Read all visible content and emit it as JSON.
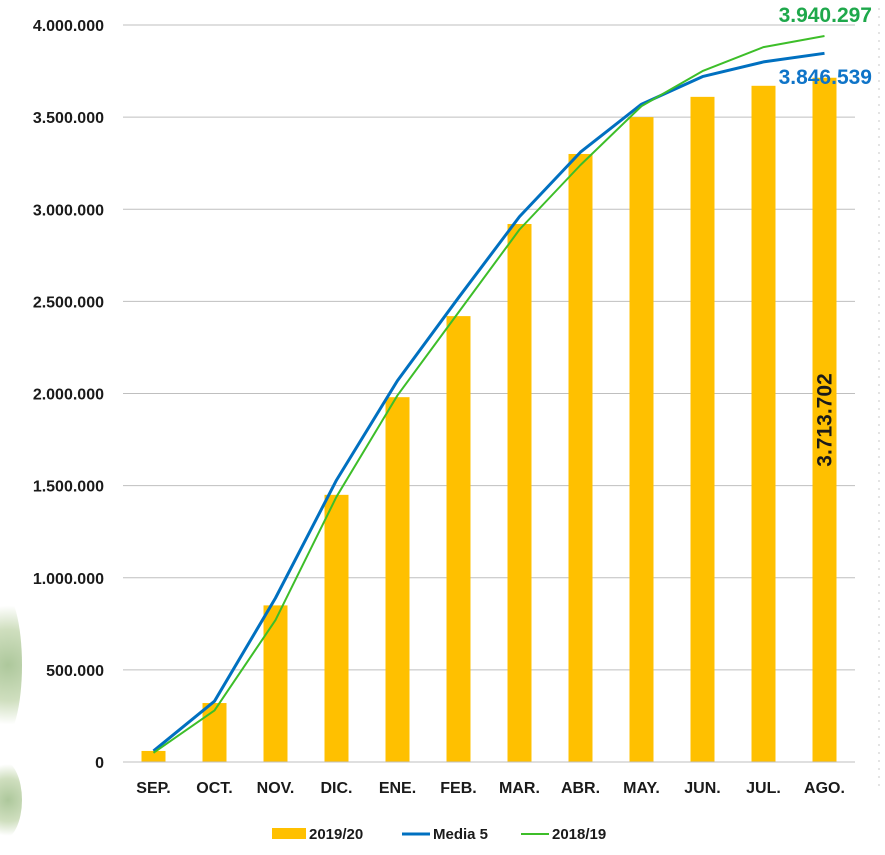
{
  "chart_data": {
    "type": "bar",
    "categories": [
      "SEP.",
      "OCT.",
      "NOV.",
      "DIC.",
      "ENE.",
      "FEB.",
      "MAR.",
      "ABR.",
      "MAY.",
      "JUN.",
      "JUL.",
      "AGO."
    ],
    "ylim": [
      0,
      4000000
    ],
    "yticks": [
      0,
      500000,
      1000000,
      1500000,
      2000000,
      2500000,
      3000000,
      3500000,
      4000000
    ],
    "ytick_labels": [
      "0",
      "500.000",
      "1.000.000",
      "1.500.000",
      "2.000.000",
      "2.500.000",
      "3.000.000",
      "3.500.000",
      "4.000.000"
    ],
    "grid": true,
    "legend_position": "bottom",
    "series": [
      {
        "name": "2019/20",
        "kind": "bar",
        "color": "#FFC000",
        "values": [
          60000,
          320000,
          850000,
          1450000,
          1980000,
          2420000,
          2920000,
          3300000,
          3500000,
          3610000,
          3670000,
          3713702
        ]
      },
      {
        "name": "Media 5",
        "kind": "line",
        "color": "#0070C0",
        "values": [
          60000,
          330000,
          890000,
          1530000,
          2070000,
          2520000,
          2960000,
          3310000,
          3570000,
          3720000,
          3800000,
          3846539
        ]
      },
      {
        "name": "2018/19",
        "kind": "line",
        "color": "#3DBE29",
        "values": [
          50000,
          280000,
          770000,
          1440000,
          1990000,
          2440000,
          2890000,
          3240000,
          3560000,
          3750000,
          3880000,
          3940297
        ]
      }
    ],
    "annotations": [
      {
        "series": "2018/19",
        "text": "3.940.297",
        "color": "#1EA84B"
      },
      {
        "series": "Media 5",
        "text": "3.846.539",
        "color": "#0F74C8"
      },
      {
        "series": "2019/20",
        "text": "3.713.702",
        "color": "#1a1a1a"
      }
    ]
  }
}
